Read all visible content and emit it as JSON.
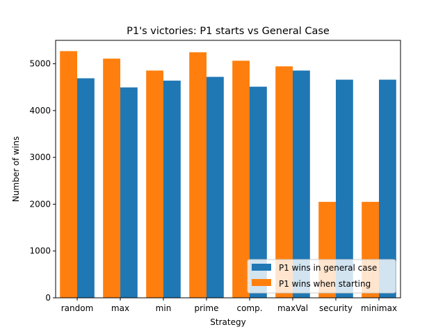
{
  "chart_data": {
    "type": "bar",
    "title": "P1's victories: P1 starts vs General Case",
    "xlabel": "Strategy",
    "ylabel": "Number of wins",
    "categories": [
      "random",
      "max",
      "min",
      "prime",
      "comp.",
      "maxVal",
      "security",
      "minimax"
    ],
    "series": [
      {
        "name": "P1 wins in general case",
        "color": "#1f77b4",
        "values": [
          4690,
          4495,
          4640,
          4720,
          4510,
          4855,
          4660,
          4660
        ]
      },
      {
        "name": "P1 wins when starting",
        "color": "#ff7f0e",
        "values": [
          5270,
          5110,
          4855,
          5245,
          5065,
          4945,
          2050,
          2050
        ]
      }
    ],
    "ylim": [
      0,
      5500
    ],
    "yticks": [
      0,
      1000,
      2000,
      3000,
      4000,
      5000
    ],
    "grid": false,
    "legend_position": "lower-right"
  }
}
